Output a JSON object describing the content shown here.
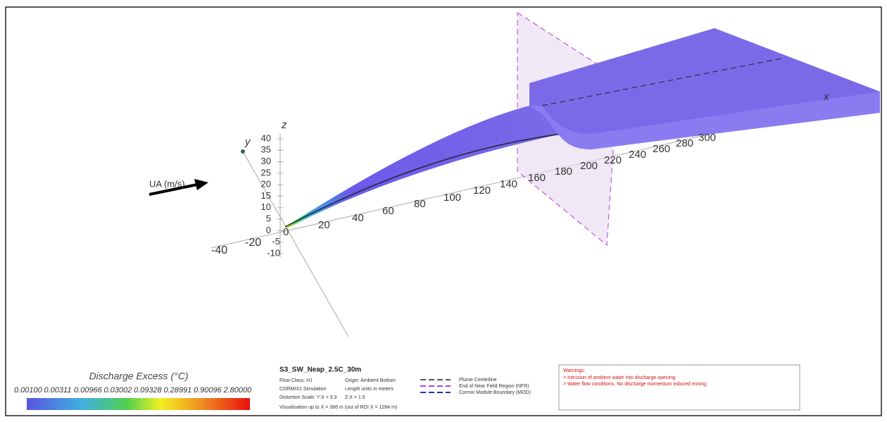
{
  "scene": {
    "flow_label": "UA (m/s)",
    "x_axis_label": "x",
    "y_axis_label": "y",
    "z_axis_label": "z",
    "x_ticks": [
      0,
      20,
      40,
      60,
      80,
      100,
      120,
      140,
      160,
      180,
      200,
      220,
      240,
      260,
      280,
      300
    ],
    "z_ticks": [
      40,
      35,
      30,
      25,
      20,
      15,
      10,
      5,
      0,
      -5,
      -10
    ],
    "y_ticks": [
      -40,
      -20
    ]
  },
  "colorbar": {
    "title": "Discharge Excess (°C)",
    "labels": [
      "0.00100",
      "0.00311",
      "0.00966",
      "0.03002",
      "0.09328",
      "0.28991",
      "0.90096",
      "2.80000"
    ]
  },
  "info": {
    "title": "S3_SW_Neap_2.5C_30m",
    "lines": [
      [
        "Flow Class: H1",
        "Origin: Ambient Bottom"
      ],
      [
        "CORMIX1 Simulation",
        "Length units in meters"
      ],
      [
        "Distortion Scale: Y:X = 3.3",
        "Z:X = 1.5"
      ]
    ],
    "footer": "Visualisation up to X = 386 m (out of ROI X = 1284 m)"
  },
  "line_legend": [
    {
      "label": "Plume Centerline",
      "color": "#555555"
    },
    {
      "label": "End of Near Field Region (NFR)",
      "color": "#b040d0"
    },
    {
      "label": "Cormix Module Boundary (MOD)",
      "color": "#2030c0"
    }
  ],
  "warnings": {
    "title": "Warnings:",
    "items": [
      "> Intrusion of ambient water into discharge opening.",
      "> Water flow conditions. No discharge momentum induced mixing."
    ]
  }
}
